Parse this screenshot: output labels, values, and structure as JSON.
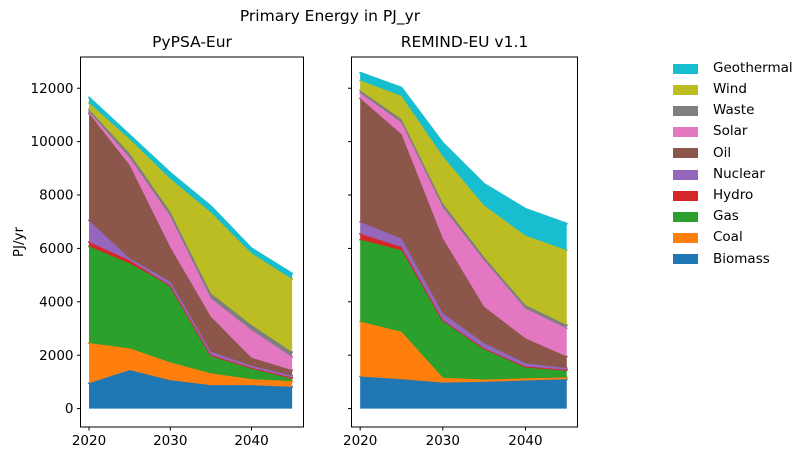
{
  "figure": {
    "title": "Primary Energy in PJ_yr",
    "ylabel": "PJ/yr",
    "background": "#ffffff",
    "text_color": "#000000",
    "frame_color": "#000000"
  },
  "legend": {
    "position": "right",
    "entries": [
      {
        "label": "Geothermal",
        "color": "#17becf"
      },
      {
        "label": "Wind",
        "color": "#bcbd22"
      },
      {
        "label": "Waste",
        "color": "#7f7f7f"
      },
      {
        "label": "Solar",
        "color": "#e377c2"
      },
      {
        "label": "Oil",
        "color": "#8c564b"
      },
      {
        "label": "Nuclear",
        "color": "#9467bd"
      },
      {
        "label": "Hydro",
        "color": "#d62728"
      },
      {
        "label": "Gas",
        "color": "#2ca02c"
      },
      {
        "label": "Coal",
        "color": "#ff7f0e"
      },
      {
        "label": "Biomass",
        "color": "#1f77b4"
      }
    ]
  },
  "chart_data": [
    {
      "type": "area",
      "stacked": true,
      "title": "PyPSA-Eur",
      "ylabel": "PJ/yr",
      "x": [
        2020,
        2025,
        2030,
        2035,
        2040,
        2045
      ],
      "xticks": [
        "2020",
        "2030",
        "2040"
      ],
      "xtick_values": [
        2020,
        2030,
        2040
      ],
      "yticks": [
        "0",
        "2000",
        "4000",
        "6000",
        "8000",
        "10000",
        "12000"
      ],
      "ytick_values": [
        0,
        2000,
        4000,
        6000,
        8000,
        10000,
        12000
      ],
      "xlim": [
        2018.95,
        2046.4
      ],
      "ylim": [
        -690,
        13170
      ],
      "grid": false,
      "stack_order_bottom_to_top": [
        "Biomass",
        "Coal",
        "Gas",
        "Hydro",
        "Nuclear",
        "Oil",
        "Solar",
        "Waste",
        "Wind",
        "Geothermal"
      ],
      "series": [
        {
          "name": "Biomass",
          "color": "#1f77b4",
          "values": [
            950,
            1440,
            1060,
            880,
            880,
            815
          ]
        },
        {
          "name": "Coal",
          "color": "#ff7f0e",
          "values": [
            1500,
            815,
            670,
            440,
            225,
            215
          ]
        },
        {
          "name": "Gas",
          "color": "#2ca02c",
          "values": [
            3625,
            3185,
            2880,
            685,
            425,
            125
          ]
        },
        {
          "name": "Hydro",
          "color": "#d62728",
          "values": [
            165,
            110,
            0,
            0,
            0,
            0
          ]
        },
        {
          "name": "Nuclear",
          "color": "#9467bd",
          "values": [
            810,
            75,
            150,
            125,
            75,
            75
          ]
        },
        {
          "name": "Oil",
          "color": "#8c564b",
          "values": [
            4010,
            3495,
            1290,
            1310,
            300,
            210
          ]
        },
        {
          "name": "Solar",
          "color": "#e377c2",
          "values": [
            50,
            275,
            1160,
            690,
            1035,
            490
          ]
        },
        {
          "name": "Waste",
          "color": "#7f7f7f",
          "values": [
            100,
            165,
            160,
            185,
            190,
            185
          ]
        },
        {
          "name": "Wind",
          "color": "#bcbd22",
          "values": [
            240,
            535,
            1240,
            3035,
            2685,
            2735
          ]
        },
        {
          "name": "Geothermal",
          "color": "#17becf",
          "values": [
            200,
            150,
            220,
            230,
            185,
            205
          ]
        }
      ],
      "totals": [
        11650,
        10245,
        8830,
        7580,
        6000,
        5055
      ]
    },
    {
      "type": "area",
      "stacked": true,
      "title": "REMIND-EU v1.1",
      "ylabel": "PJ/yr",
      "x": [
        2020,
        2025,
        2030,
        2035,
        2040,
        2045
      ],
      "xticks": [
        "2020",
        "2030",
        "2040"
      ],
      "xtick_values": [
        2020,
        2030,
        2040
      ],
      "yticks": [],
      "ytick_values": [
        0,
        2000,
        4000,
        6000,
        8000,
        10000,
        12000
      ],
      "xlim": [
        2018.95,
        2046.3
      ],
      "ylim": [
        -690,
        13170
      ],
      "grid": false,
      "stack_order_bottom_to_top": [
        "Biomass",
        "Coal",
        "Gas",
        "Hydro",
        "Nuclear",
        "Oil",
        "Solar",
        "Waste",
        "Wind",
        "Geothermal"
      ],
      "series": [
        {
          "name": "Biomass",
          "color": "#1f77b4",
          "values": [
            1200,
            1100,
            970,
            1000,
            1050,
            1100
          ]
        },
        {
          "name": "Coal",
          "color": "#ff7f0e",
          "values": [
            2055,
            1780,
            185,
            90,
            80,
            70
          ]
        },
        {
          "name": "Gas",
          "color": "#2ca02c",
          "values": [
            3070,
            3050,
            2160,
            1170,
            445,
            280
          ]
        },
        {
          "name": "Hydro",
          "color": "#d62728",
          "values": [
            225,
            125,
            0,
            0,
            0,
            0
          ]
        },
        {
          "name": "Nuclear",
          "color": "#9467bd",
          "values": [
            440,
            310,
            250,
            185,
            125,
            65
          ]
        },
        {
          "name": "Oil",
          "color": "#8c564b",
          "values": [
            4630,
            3915,
            2810,
            1370,
            930,
            435
          ]
        },
        {
          "name": "Solar",
          "color": "#e377c2",
          "values": [
            200,
            435,
            1160,
            1740,
            1120,
            1055
          ]
        },
        {
          "name": "Waste",
          "color": "#7f7f7f",
          "values": [
            100,
            125,
            150,
            125,
            125,
            125
          ]
        },
        {
          "name": "Wind",
          "color": "#bcbd22",
          "values": [
            370,
            870,
            1765,
            1925,
            2610,
            2800
          ]
        },
        {
          "name": "Geothermal",
          "color": "#17becf",
          "values": [
            290,
            310,
            500,
            810,
            995,
            995
          ]
        }
      ],
      "totals": [
        12580,
        12020,
        9950,
        8415,
        7480,
        6925
      ]
    }
  ]
}
